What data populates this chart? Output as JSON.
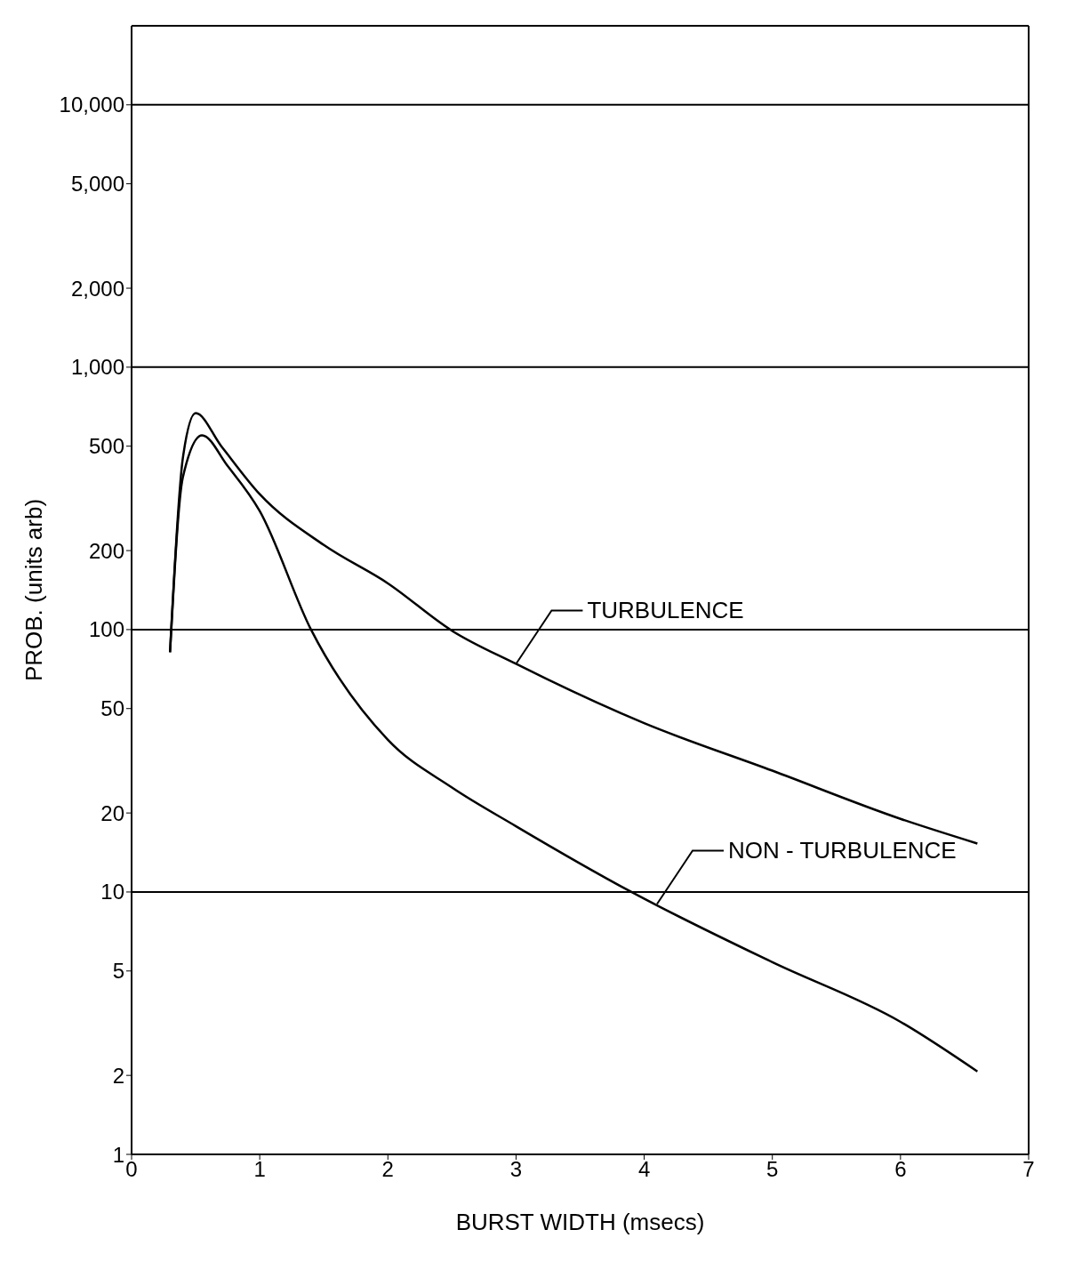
{
  "chart_data": {
    "type": "line",
    "xlabel": "BURST  WIDTH (msecs)",
    "ylabel": "PROB. (units arb)",
    "xlim": [
      0,
      7
    ],
    "xticks": [
      0,
      1,
      2,
      3,
      4,
      5,
      6,
      7
    ],
    "ylim": [
      1,
      20000
    ],
    "log": "y",
    "yticks": [
      1,
      2,
      5,
      10,
      20,
      50,
      100,
      200,
      500,
      {
        "value": 1000,
        "label": "1,000"
      },
      {
        "value": 2000,
        "label": "2,000"
      },
      {
        "value": 5000,
        "label": "5,000"
      },
      {
        "value": 10000,
        "label": "10,000"
      }
    ],
    "ref_lines": [
      {
        "axis": "y",
        "value": 10,
        "color": "#000000"
      },
      {
        "axis": "y",
        "value": 100,
        "color": "#000000"
      },
      {
        "axis": "y",
        "value": 1000,
        "color": "#000000"
      },
      {
        "axis": "y",
        "value": 10000,
        "color": "#000000"
      }
    ],
    "marker": "none",
    "line_style": "solid",
    "series": [
      {
        "color": "#000000",
        "x": [
          0.3,
          0.4,
          0.5,
          0.7,
          1,
          1.5,
          2,
          2.5,
          3,
          4,
          5,
          6,
          6.6
        ],
        "values": [
          82,
          450,
          668,
          500,
          328,
          210,
          150,
          99,
          74,
          44,
          29,
          19,
          15.3
        ]
      },
      {
        "color": "#000000",
        "x": [
          0.3,
          0.4,
          0.55,
          0.75,
          1,
          1.4,
          2,
          2.5,
          3,
          3.9,
          5,
          6,
          6.6
        ],
        "values": [
          82,
          380,
          550,
          420,
          283,
          100,
          38,
          25,
          17.8,
          10,
          5.4,
          3.2,
          2.07
        ]
      }
    ],
    "annotations": [
      {
        "text": "TURBULENCE",
        "x": 3,
        "y": 74
      },
      {
        "text": "NON - TURBULENCE",
        "x": 4.1,
        "y": 9
      }
    ]
  }
}
